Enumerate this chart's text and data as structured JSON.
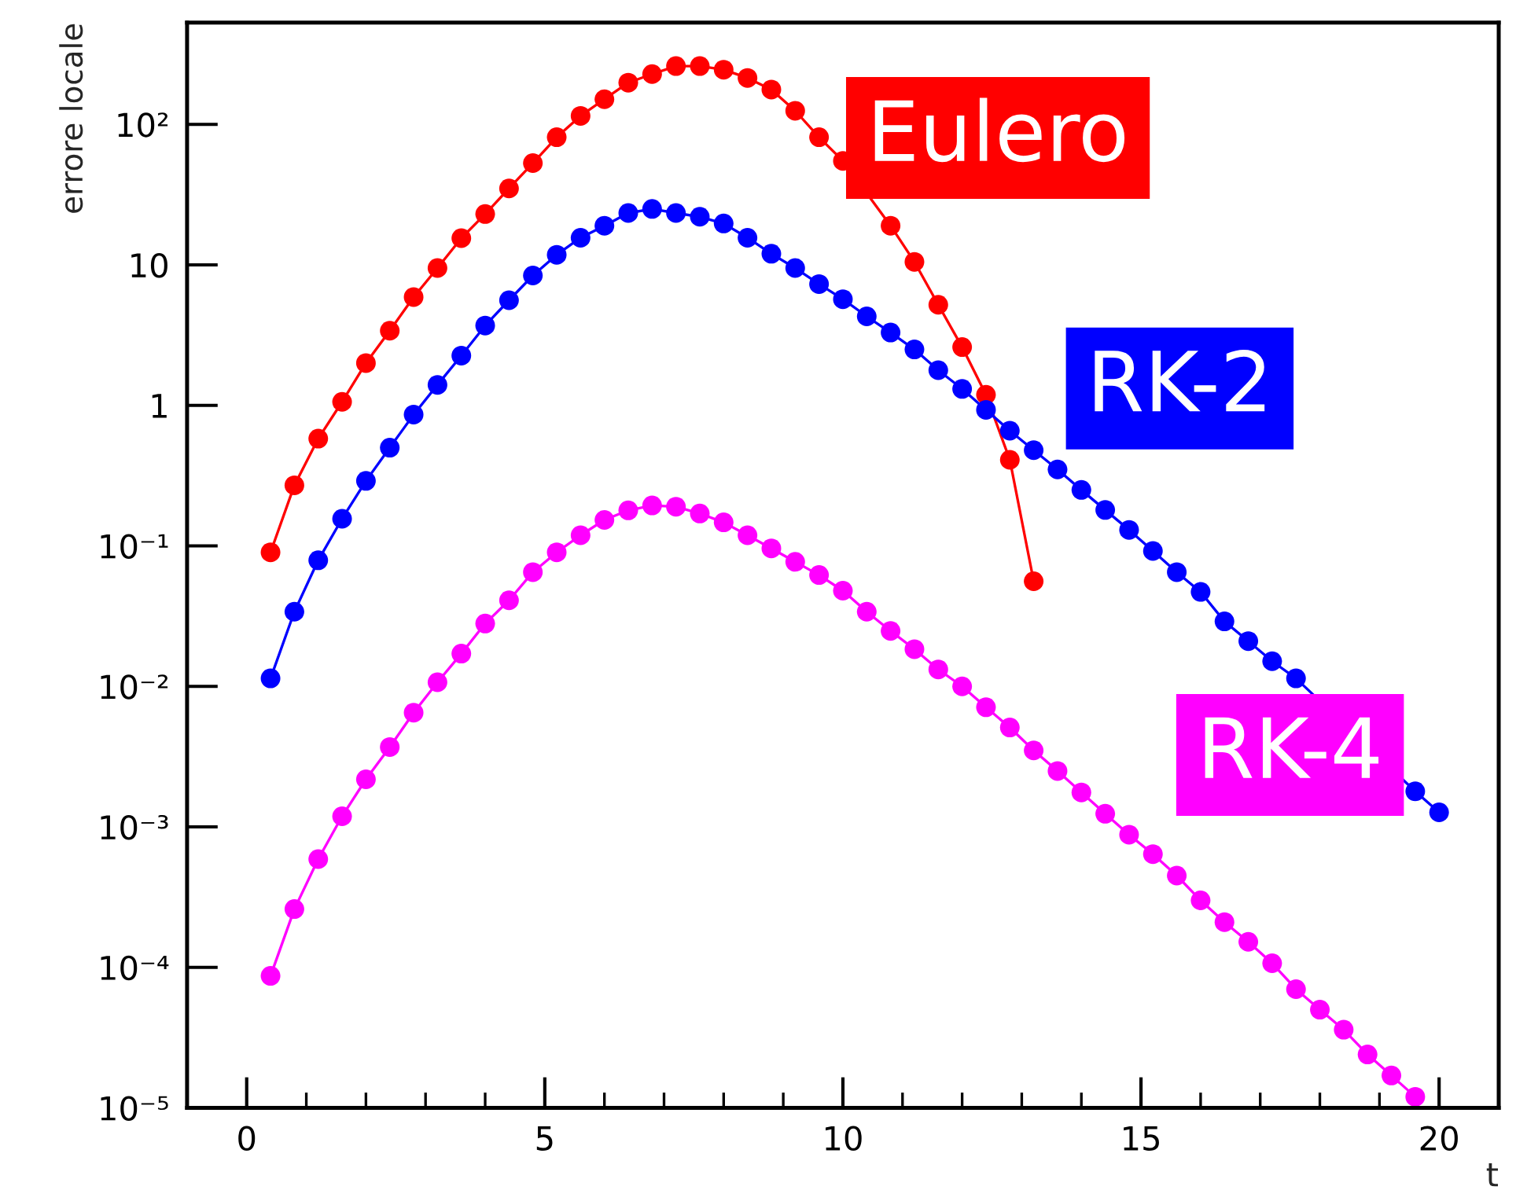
{
  "chart_data": {
    "type": "line",
    "xlabel": "t",
    "ylabel": "errore locale",
    "log": "y",
    "grid": false,
    "legend": "right",
    "marker": "circle",
    "line_style": "solid",
    "xlim": [
      -1,
      21
    ],
    "xticks": [
      0,
      5,
      10,
      15,
      20
    ],
    "ylim": [
      1e-05,
      530
    ],
    "yticks": [
      {
        "value": 1e-05,
        "label": "10⁻⁵"
      },
      {
        "value": 0.0001,
        "label": "10⁻⁴"
      },
      {
        "value": 0.001,
        "label": "10⁻³"
      },
      {
        "value": 0.01,
        "label": "10⁻²"
      },
      {
        "value": 0.1,
        "label": "10⁻¹"
      },
      1,
      10,
      {
        "value": 100,
        "label": "10²"
      }
    ],
    "x": [
      0.4,
      0.8,
      1.2,
      1.6,
      2.0,
      2.4,
      2.8,
      3.2,
      3.6,
      4.0,
      4.4,
      4.8,
      5.2,
      5.6,
      6.0,
      6.4,
      6.8,
      7.2,
      7.6,
      8.0,
      8.4,
      8.8,
      9.2,
      9.6,
      10.0,
      10.4,
      10.8,
      11.2,
      11.6,
      12.0,
      12.4,
      12.8,
      13.2,
      13.6,
      14.0,
      14.4,
      14.8,
      15.2,
      15.6,
      16.0,
      16.4,
      16.8,
      17.2,
      17.6,
      18.0,
      18.4,
      18.8,
      19.2,
      19.6,
      20.0
    ],
    "series": [
      {
        "name": "Eulero",
        "color": "#ff0000",
        "values": [
          0.09,
          0.27,
          0.58,
          1.06,
          2.0,
          3.4,
          5.9,
          9.5,
          15.5,
          23,
          35,
          53,
          81,
          115,
          151,
          198,
          228,
          260,
          260,
          245,
          214,
          177,
          125,
          81,
          55,
          null,
          19,
          10.5,
          5.2,
          2.6,
          1.19,
          0.41,
          0.056,
          null,
          null,
          null,
          null,
          null,
          null,
          null,
          null,
          null,
          null,
          null,
          null,
          null,
          null,
          null,
          null,
          null
        ]
      },
      {
        "name": "RK-2",
        "color": "#0000ff",
        "values": [
          0.0114,
          0.034,
          0.079,
          0.156,
          0.29,
          0.5,
          0.86,
          1.4,
          2.26,
          3.7,
          5.6,
          8.4,
          11.8,
          15.6,
          19,
          23.4,
          25,
          23.4,
          22,
          19.7,
          15.6,
          12,
          9.5,
          7.3,
          5.7,
          4.3,
          3.3,
          2.5,
          1.78,
          1.31,
          0.93,
          0.66,
          0.48,
          0.35,
          0.25,
          0.18,
          0.13,
          0.092,
          0.065,
          0.047,
          0.029,
          0.021,
          0.0151,
          0.0114,
          null,
          null,
          null,
          null,
          0.00179,
          0.00127
        ]
      },
      {
        "name": "RK-4",
        "color": "#ff00ff",
        "values": [
          8.7e-05,
          0.00026,
          0.00059,
          0.00119,
          0.00218,
          0.0037,
          0.0065,
          0.0107,
          0.0171,
          0.028,
          0.041,
          0.065,
          0.09,
          0.119,
          0.153,
          0.179,
          0.194,
          0.19,
          0.17,
          0.147,
          0.119,
          0.096,
          0.077,
          0.062,
          0.048,
          0.034,
          0.0248,
          0.0184,
          0.0132,
          0.01,
          0.0071,
          0.0051,
          0.0035,
          0.0025,
          0.00176,
          0.00124,
          0.00088,
          0.00064,
          0.00045,
          0.0003,
          0.00021,
          0.000152,
          0.000107,
          7e-05,
          5e-05,
          3.6e-05,
          2.4e-05,
          1.7e-05,
          1.2e-05,
          null
        ]
      }
    ]
  }
}
